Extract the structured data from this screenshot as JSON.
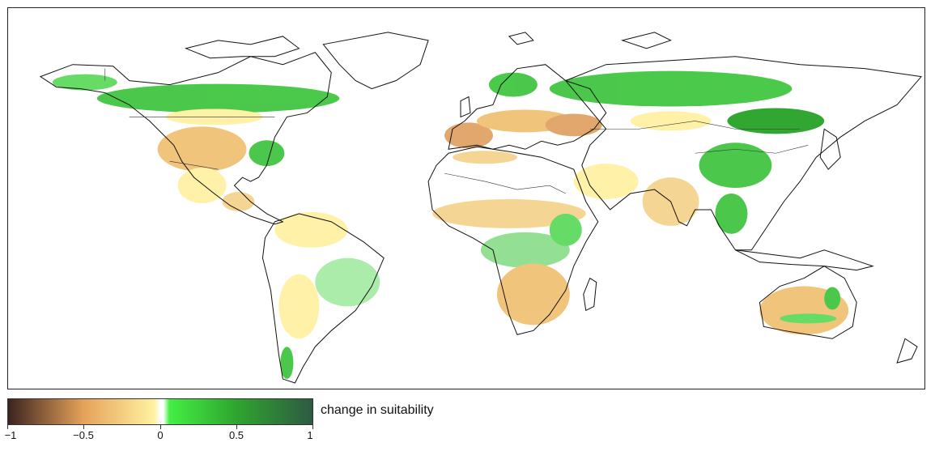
{
  "legend": {
    "title": "change in suitability",
    "ticks": [
      "−1",
      "−0.5",
      "0",
      "0.5",
      "1"
    ],
    "tick_values": [
      -1,
      -0.5,
      0,
      0.5,
      1
    ],
    "range": [
      -1,
      1
    ],
    "colors": {
      "min": "#3b2320",
      "neg_mid": "#e6a35a",
      "near_zero_neg": "#fff2a0",
      "zero": "#ffffff",
      "near_zero_pos": "#44ee44",
      "pos_mid": "#2fa52f",
      "max": "#2e5a42"
    }
  },
  "map": {
    "projection": "equirectangular",
    "region": "world",
    "colors": {
      "coastline": "#111111",
      "background": "#ffffff",
      "gain": "#3cc43c",
      "strong_gain": "#20a020",
      "loss": "#f0c070",
      "strong_loss": "#e0a060",
      "slight_loss": "#fff0a0"
    }
  }
}
